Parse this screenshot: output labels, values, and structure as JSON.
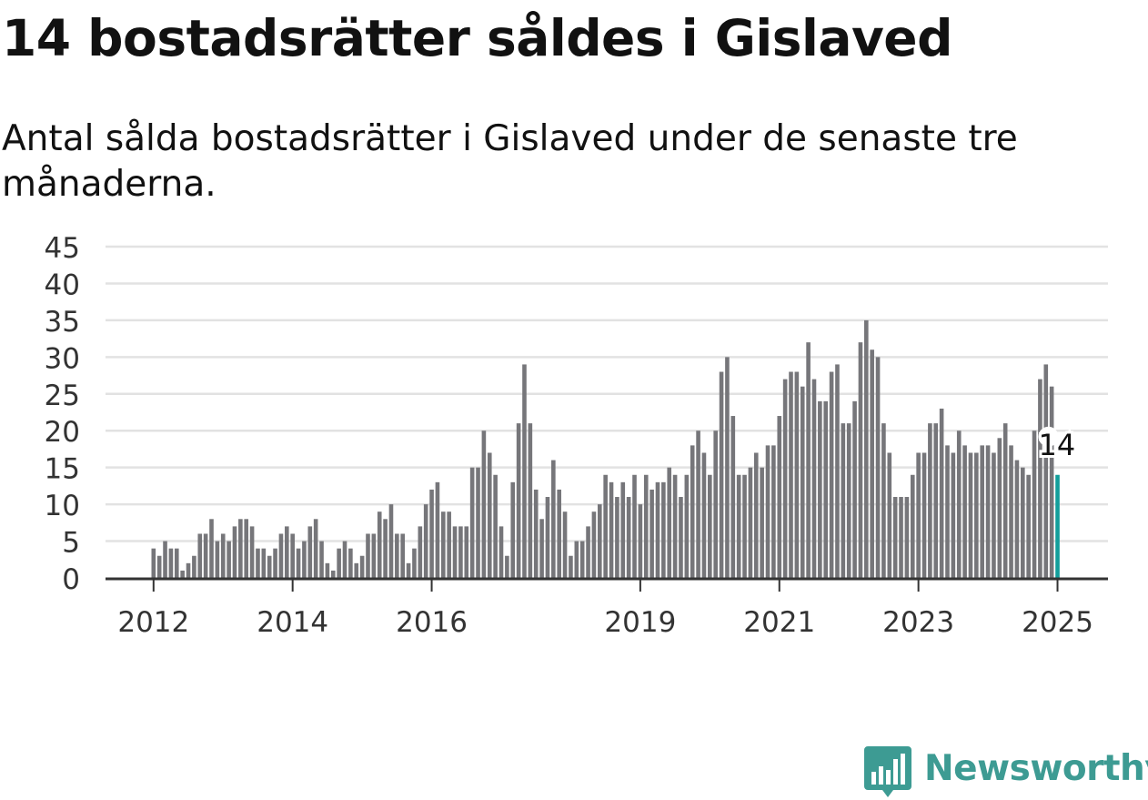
{
  "title": "14 bostadsrätter såldes i Gislaved",
  "subtitle": "Antal sålda bostadsrätter i Gislaved under de senaste tre månaderna.",
  "brand": {
    "name": "Newsworthy",
    "logo_icon": "bar-chart-speech-bubble-icon",
    "color": "#3d9b93"
  },
  "colors": {
    "bar": "#76767a",
    "highlight": "#129e9b",
    "grid": "#e2e2e2",
    "axis": "#333333",
    "text": "#333333"
  },
  "chart_data": {
    "type": "bar",
    "title": "14 bostadsrätter såldes i Gislaved",
    "subtitle": "Antal sålda bostadsrätter i Gislaved under de senaste tre månaderna.",
    "xlabel": "",
    "ylabel": "",
    "ylim": [
      0,
      45
    ],
    "yticks": [
      0,
      5,
      10,
      15,
      20,
      25,
      30,
      35,
      40,
      45
    ],
    "grid": true,
    "legend": "none",
    "x_start": "2012-01",
    "x_end": "2025-01",
    "xtick_labels": [
      {
        "label": "2012",
        "period": "2012-01"
      },
      {
        "label": "2014",
        "period": "2014-01"
      },
      {
        "label": "2016",
        "period": "2016-01"
      },
      {
        "label": "2019",
        "period": "2019-01"
      },
      {
        "label": "2021",
        "period": "2021-01"
      },
      {
        "label": "2023",
        "period": "2023-01"
      },
      {
        "label": "2025",
        "period": "2025-01"
      }
    ],
    "values": [
      4,
      3,
      5,
      4,
      4,
      1,
      2,
      3,
      6,
      6,
      8,
      5,
      6,
      5,
      7,
      8,
      8,
      7,
      4,
      4,
      3,
      4,
      6,
      7,
      6,
      4,
      5,
      7,
      8,
      5,
      2,
      1,
      4,
      5,
      4,
      2,
      3,
      6,
      6,
      9,
      8,
      10,
      6,
      6,
      2,
      4,
      7,
      10,
      12,
      13,
      9,
      9,
      7,
      7,
      7,
      15,
      15,
      20,
      17,
      14,
      7,
      3,
      13,
      21,
      29,
      21,
      12,
      8,
      11,
      16,
      12,
      9,
      3,
      5,
      5,
      7,
      9,
      10,
      14,
      13,
      11,
      13,
      11,
      14,
      10,
      14,
      12,
      13,
      13,
      15,
      14,
      11,
      14,
      18,
      20,
      17,
      14,
      20,
      28,
      30,
      22,
      14,
      14,
      15,
      17,
      15,
      18,
      18,
      22,
      27,
      28,
      28,
      26,
      32,
      27,
      24,
      24,
      28,
      29,
      21,
      21,
      24,
      32,
      35,
      31,
      30,
      21,
      17,
      11,
      11,
      11,
      14,
      17,
      17,
      21,
      21,
      23,
      18,
      17,
      20,
      18,
      17,
      17,
      18,
      18,
      17,
      19,
      21,
      18,
      16,
      15,
      14,
      20,
      27,
      29,
      26,
      14
    ],
    "highlight": {
      "label": "14",
      "value": 14,
      "period": "2025-01"
    }
  }
}
